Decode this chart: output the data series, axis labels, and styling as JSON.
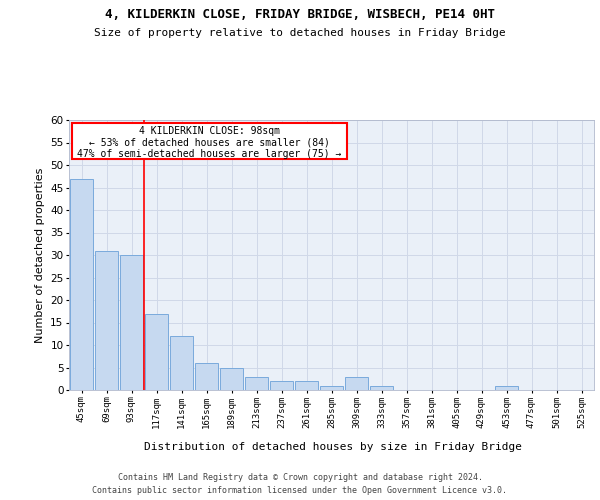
{
  "title1": "4, KILDERKIN CLOSE, FRIDAY BRIDGE, WISBECH, PE14 0HT",
  "title2": "Size of property relative to detached houses in Friday Bridge",
  "xlabel": "Distribution of detached houses by size in Friday Bridge",
  "ylabel": "Number of detached properties",
  "categories": [
    "45sqm",
    "69sqm",
    "93sqm",
    "117sqm",
    "141sqm",
    "165sqm",
    "189sqm",
    "213sqm",
    "237sqm",
    "261sqm",
    "285sqm",
    "309sqm",
    "333sqm",
    "357sqm",
    "381sqm",
    "405sqm",
    "429sqm",
    "453sqm",
    "477sqm",
    "501sqm",
    "525sqm"
  ],
  "bar_values": [
    47,
    31,
    30,
    17,
    12,
    6,
    5,
    3,
    2,
    2,
    1,
    3,
    1,
    0,
    0,
    0,
    0,
    1,
    0,
    0,
    0
  ],
  "bar_color": "#c6d9f0",
  "bar_edge_color": "#7aaadc",
  "ylim": [
    0,
    60
  ],
  "yticks": [
    0,
    5,
    10,
    15,
    20,
    25,
    30,
    35,
    40,
    45,
    50,
    55,
    60
  ],
  "red_line_index": 2,
  "annotation_text1": "4 KILDERKIN CLOSE: 98sqm",
  "annotation_text2": "← 53% of detached houses are smaller (84)",
  "annotation_text3": "47% of semi-detached houses are larger (75) →",
  "footer1": "Contains HM Land Registry data © Crown copyright and database right 2024.",
  "footer2": "Contains public sector information licensed under the Open Government Licence v3.0.",
  "bg_color": "#ffffff",
  "grid_color": "#d0d8e8"
}
